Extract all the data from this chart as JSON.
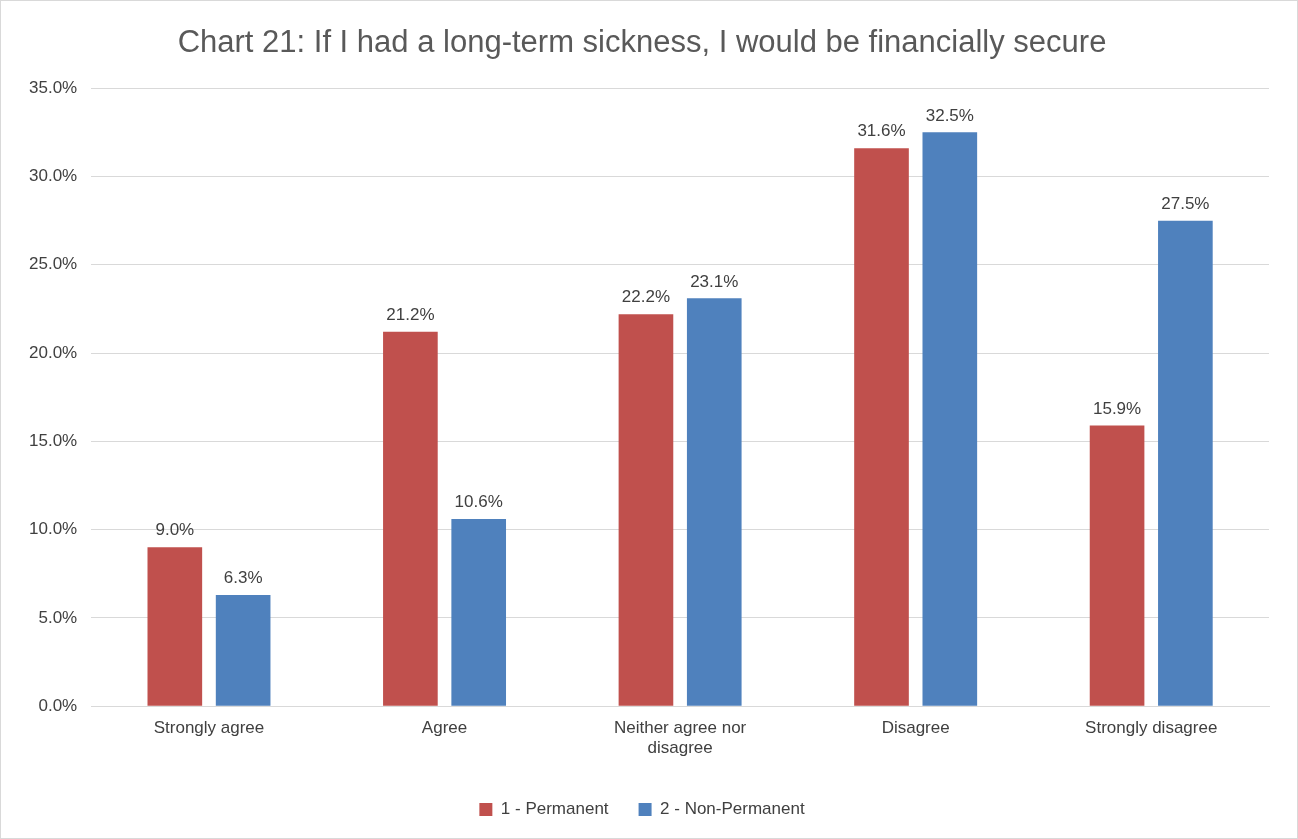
{
  "chart_data": {
    "type": "bar",
    "title": "Chart 21: If I had a long-term sickness, I would be financially secure",
    "categories": [
      "Strongly agree",
      "Agree",
      "Neither agree nor disagree",
      "Disagree",
      "Strongly disagree"
    ],
    "series": [
      {
        "name": "1 - Permanent",
        "color": "#c0504d",
        "values": [
          9.0,
          21.2,
          22.2,
          31.6,
          15.9
        ],
        "value_labels": [
          "9.0%",
          "21.2%",
          "22.2%",
          "31.6%",
          "15.9%"
        ]
      },
      {
        "name": "2 - Non-Permanent",
        "color": "#4f81bd",
        "values": [
          6.3,
          10.6,
          23.1,
          32.5,
          27.5
        ],
        "value_labels": [
          "6.3%",
          "10.6%",
          "23.1%",
          "32.5%",
          "27.5%"
        ]
      }
    ],
    "ylim": [
      0,
      35
    ],
    "yticks": [
      {
        "value": 0,
        "label": "0.0%"
      },
      {
        "value": 5,
        "label": "5.0%"
      },
      {
        "value": 10,
        "label": "10.0%"
      },
      {
        "value": 15,
        "label": "15.0%"
      },
      {
        "value": 20,
        "label": "20.0%"
      },
      {
        "value": 25,
        "label": "25.0%"
      },
      {
        "value": 30,
        "label": "30.0%"
      },
      {
        "value": 35,
        "label": "35.0%"
      }
    ],
    "grid": "y",
    "legend": "bottom"
  }
}
